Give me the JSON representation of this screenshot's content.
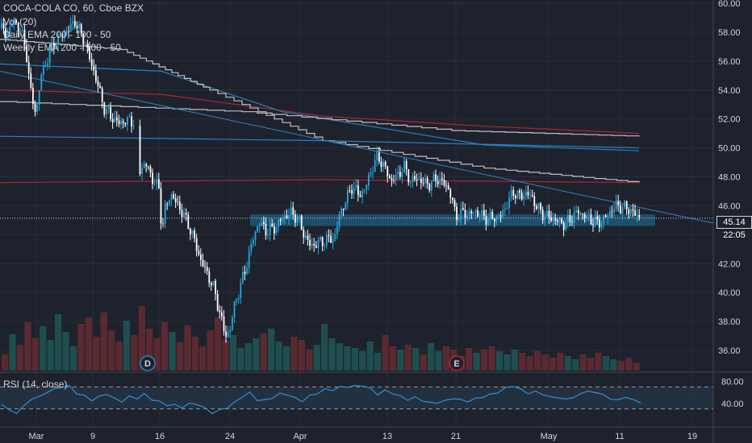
{
  "legend": {
    "symbol": "COCA-COLA CO, 60, Cboe BZX",
    "vol": "Vol (20)",
    "daily_ema": "Daily EMA 200 - 100 - 50",
    "weekly_ema": "Weekly EMA 200 - 100 - 50",
    "rsi": "RSI (14, close)"
  },
  "price_tag": "45.14",
  "time_tag": "22:05",
  "colors": {
    "background": "#1e222d",
    "grid": "#2a2e39",
    "candle_up": "#26a7df",
    "candle_down": "#ffffff",
    "ema_red": "#b22833",
    "ema_blue": "#2a86c6",
    "ema_white": "#c8c8c8",
    "support_zone": "#1e5a78",
    "vol_up": "#1f4e4f",
    "vol_down": "#5a2a30",
    "rsi_line": "#2f8fd6",
    "rsi_band": "#263b4d"
  },
  "events": {
    "dividend": "D",
    "earnings": "E"
  },
  "chart_data": {
    "type": "candlestick",
    "title": "COCA-COLA CO, 60, Cboe BZX",
    "ylim": [
      35.5,
      60
    ],
    "price_ticks": [
      "60.00",
      "58.00",
      "56.00",
      "54.00",
      "52.00",
      "50.00",
      "48.00",
      "46.00",
      "44.00",
      "42.00",
      "40.00",
      "38.00",
      "36.00"
    ],
    "time_labels": [
      "Mar",
      "9",
      "16",
      "24",
      "Apr",
      "13",
      "21",
      "May",
      "11",
      "19"
    ],
    "last_price": 45.14,
    "price_path": [
      [
        0,
        58.3
      ],
      [
        8,
        57.8
      ],
      [
        15,
        58.8
      ],
      [
        25,
        58.2
      ],
      [
        32,
        56.5
      ],
      [
        38,
        53.5
      ],
      [
        44,
        52.4
      ],
      [
        50,
        55
      ],
      [
        58,
        56.2
      ],
      [
        66,
        57.2
      ],
      [
        75,
        57.8
      ],
      [
        85,
        58.2
      ],
      [
        92,
        58.8
      ],
      [
        98,
        58
      ],
      [
        104,
        57.4
      ],
      [
        110,
        56.2
      ],
      [
        116,
        55.2
      ],
      [
        122,
        54
      ],
      [
        128,
        52.8
      ],
      [
        136,
        52.2
      ],
      [
        146,
        51.7
      ],
      [
        158,
        51.9
      ],
      [
        165,
        51.8
      ],
      [
        170,
        48.4
      ],
      [
        176,
        48.7
      ],
      [
        182,
        48.8
      ],
      [
        188,
        47.8
      ],
      [
        196,
        47.2
      ],
      [
        200,
        44.2
      ],
      [
        204,
        45.8
      ],
      [
        210,
        46.8
      ],
      [
        218,
        46.2
      ],
      [
        226,
        45.4
      ],
      [
        232,
        44.8
      ],
      [
        240,
        43.6
      ],
      [
        248,
        42.2
      ],
      [
        256,
        41.3
      ],
      [
        264,
        40.3
      ],
      [
        272,
        38.5
      ],
      [
        278,
        37
      ],
      [
        284,
        37.4
      ],
      [
        290,
        39.2
      ],
      [
        298,
        40.6
      ],
      [
        306,
        42.2
      ],
      [
        312,
        43.6
      ],
      [
        320,
        44.9
      ],
      [
        330,
        44.2
      ],
      [
        340,
        44.5
      ],
      [
        350,
        45.2
      ],
      [
        360,
        45.5
      ],
      [
        368,
        45.2
      ],
      [
        376,
        44
      ],
      [
        384,
        43.2
      ],
      [
        392,
        43.4
      ],
      [
        402,
        43.6
      ],
      [
        414,
        43.8
      ],
      [
        420,
        45.4
      ],
      [
        428,
        46.4
      ],
      [
        436,
        47.4
      ],
      [
        444,
        46.7
      ],
      [
        452,
        47.2
      ],
      [
        460,
        48.6
      ],
      [
        468,
        49.4
      ],
      [
        476,
        48.6
      ],
      [
        484,
        47.7
      ],
      [
        492,
        48.1
      ],
      [
        500,
        48.7
      ],
      [
        508,
        47.7
      ],
      [
        516,
        47.9
      ],
      [
        524,
        47.6
      ],
      [
        532,
        47.5
      ],
      [
        540,
        47.9
      ],
      [
        548,
        47.6
      ],
      [
        556,
        47.1
      ],
      [
        564,
        45.3
      ],
      [
        572,
        45.5
      ],
      [
        580,
        45.4
      ],
      [
        588,
        45.6
      ],
      [
        596,
        45.3
      ],
      [
        604,
        45.1
      ],
      [
        612,
        45.2
      ],
      [
        620,
        45.3
      ],
      [
        628,
        46.2
      ],
      [
        636,
        47
      ],
      [
        644,
        46.6
      ],
      [
        652,
        46.9
      ],
      [
        660,
        46.4
      ],
      [
        668,
        45.6
      ],
      [
        676,
        45.3
      ],
      [
        684,
        45.1
      ],
      [
        692,
        44.9
      ],
      [
        700,
        44.7
      ],
      [
        708,
        45.2
      ],
      [
        716,
        45.6
      ],
      [
        724,
        45.3
      ],
      [
        732,
        45
      ],
      [
        740,
        44.8
      ],
      [
        748,
        45.1
      ],
      [
        756,
        45.6
      ],
      [
        762,
        46
      ],
      [
        770,
        45.9
      ],
      [
        778,
        45.8
      ],
      [
        786,
        45.4
      ],
      [
        792,
        45.14
      ]
    ],
    "ema_lines": [
      {
        "name": "Daily EMA 200",
        "color": "red",
        "points": [
          [
            0,
            54.0
          ],
          [
            200,
            53.7
          ],
          [
            400,
            52.2
          ],
          [
            600,
            51.5
          ],
          [
            792,
            51.0
          ]
        ]
      },
      {
        "name": "Daily EMA 100",
        "color": "blue",
        "points": [
          [
            0,
            55.8
          ],
          [
            200,
            55.3
          ],
          [
            350,
            52.5
          ],
          [
            600,
            50.2
          ],
          [
            792,
            49.8
          ]
        ]
      },
      {
        "name": "Daily EMA 50",
        "color": "white",
        "points": [
          [
            0,
            57.5
          ],
          [
            150,
            56.8
          ],
          [
            260,
            54.0
          ],
          [
            400,
            50.5
          ],
          [
            600,
            48.6
          ],
          [
            792,
            47.6
          ]
        ]
      },
      {
        "name": "Weekly EMA 200",
        "color": "red",
        "points": [
          [
            0,
            47.6
          ],
          [
            400,
            47.8
          ],
          [
            792,
            47.6
          ]
        ]
      },
      {
        "name": "Weekly EMA 100",
        "color": "blue",
        "points": [
          [
            0,
            50.8
          ],
          [
            400,
            50.5
          ],
          [
            792,
            50.0
          ]
        ]
      },
      {
        "name": "Weekly EMA 50",
        "color": "white",
        "points": [
          [
            0,
            53.2
          ],
          [
            300,
            52.5
          ],
          [
            560,
            51.2
          ],
          [
            792,
            50.8
          ]
        ]
      }
    ],
    "trendline": [
      [
        0,
        55.3
      ],
      [
        884,
        44.8
      ]
    ],
    "support_zone": {
      "x": [
        310,
        812
      ],
      "y": [
        44.6,
        45.4
      ]
    },
    "rsi": {
      "ylim": [
        0,
        100
      ],
      "ticks": [
        "80.00",
        "40.00"
      ],
      "bands": [
        70,
        30
      ],
      "values": [
        38,
        28,
        22,
        36,
        48,
        52,
        60,
        66,
        70,
        72,
        58,
        54,
        46,
        52,
        58,
        48,
        44,
        52,
        50,
        56,
        48,
        42,
        38,
        36,
        34,
        38,
        40,
        30,
        24,
        26,
        34,
        40,
        54,
        58,
        48,
        44,
        52,
        56,
        58,
        48,
        46,
        52,
        60,
        64,
        66,
        68,
        72,
        70,
        74,
        66,
        58,
        62,
        60,
        52,
        48,
        50,
        46,
        40,
        42,
        44,
        50,
        46,
        44,
        48,
        52,
        56,
        60,
        68,
        72,
        66,
        58,
        62,
        56,
        52,
        50,
        48,
        50,
        58,
        62,
        60,
        56,
        48,
        46,
        52,
        46,
        42
      ]
    },
    "volume": {
      "max_px": 110,
      "bars": [
        20,
        45,
        32,
        60,
        40,
        55,
        38,
        70,
        48,
        30,
        58,
        66,
        42,
        72,
        50,
        36,
        62,
        44,
        80,
        52,
        40,
        60,
        48,
        35,
        56,
        42,
        30,
        50,
        66,
        38,
        44,
        28,
        34,
        40,
        46,
        52,
        36,
        30,
        42,
        38,
        26,
        32,
        58,
        40,
        34,
        30,
        28,
        24,
        36,
        22,
        44,
        30,
        26,
        32,
        28,
        20,
        34,
        24,
        30,
        26,
        18,
        28,
        22,
        26,
        30,
        24,
        20,
        26,
        22,
        18,
        24,
        20,
        16,
        22,
        18,
        14,
        20,
        16,
        22,
        18,
        14,
        12,
        16,
        10
      ]
    }
  }
}
